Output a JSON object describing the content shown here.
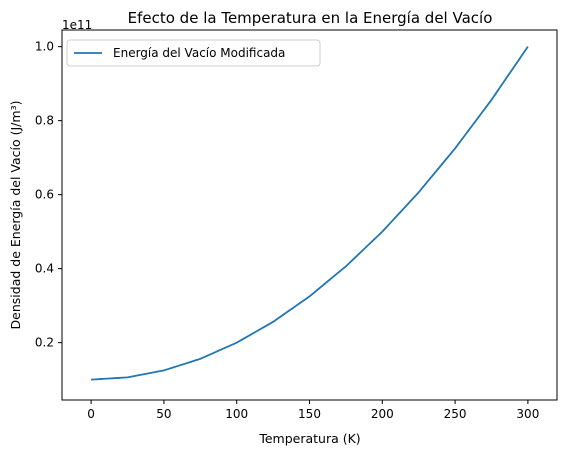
{
  "chart_data": {
    "type": "line",
    "title": "Efecto de la Temperatura en la Energía del Vacío",
    "xlabel": "Temperatura (K)",
    "ylabel": "Densidad de Energía del Vacío (J/m³)",
    "y_offset_text": "1e11",
    "y_multiplier": 100000000000.0,
    "xlim": [
      -20,
      320
    ],
    "ylim": [
      0.045,
      1.045
    ],
    "xticks": [
      0,
      50,
      100,
      150,
      200,
      250,
      300
    ],
    "yticks": [
      0.2,
      0.4,
      0.6,
      0.8,
      1.0
    ],
    "ytick_labels": [
      "0.2",
      "0.4",
      "0.6",
      "0.8",
      "1.0"
    ],
    "grid": false,
    "legend_position": "upper-left",
    "series": [
      {
        "name": "Energía del Vacío Modificada",
        "color": "#1f77b4",
        "x": [
          0,
          25,
          50,
          75,
          100,
          125,
          150,
          175,
          200,
          225,
          250,
          275,
          300
        ],
        "y": [
          0.1,
          0.10625,
          0.125,
          0.15625,
          0.2,
          0.25625,
          0.325,
          0.40625,
          0.5,
          0.60625,
          0.725,
          0.85625,
          1.0
        ]
      }
    ]
  }
}
